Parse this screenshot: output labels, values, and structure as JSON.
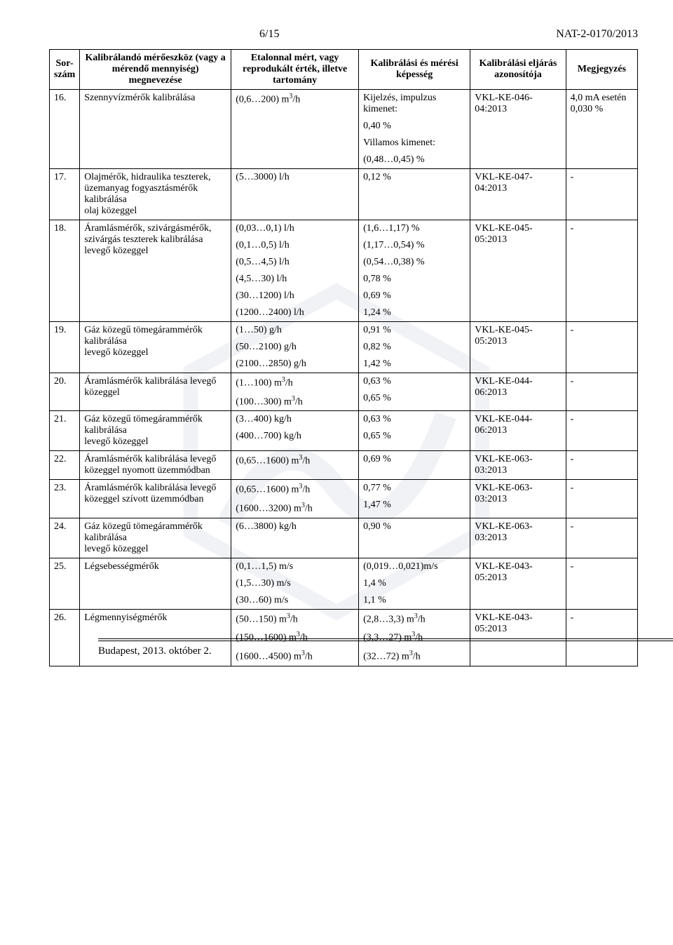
{
  "header": {
    "page_no": "6/15",
    "doc_id": "NAT-2-0170/2013"
  },
  "columns": {
    "sor": "Sor-\nszám",
    "megnevezes": "Kalibrálandó mérőeszköz (vagy a mérendő mennyiség) megnevezése",
    "etalon": "Etalonnal mért, vagy reprodukált érték, illetve tartomány",
    "kepesseg": "Kalibrálási és mérési képesség",
    "eljaras": "Kalibrálási eljárás azonosítója",
    "megjegyzes": "Megjegyzés"
  },
  "footer": "Budapest, 2013. október 2.",
  "rows": [
    {
      "n": "16.",
      "name": "Szennyvízmérők kalibrálása",
      "etalon": [
        "(0,6…200) m³/h"
      ],
      "kep": [
        "Kijelzés, impulzus kimenet:",
        "0,40 %",
        "Villamos kimenet:",
        "(0,48…0,45) %"
      ],
      "elj": "VKL-KE-046-04:2013",
      "mj": "4,0 mA esetén 0,030 %"
    },
    {
      "n": "17.",
      "name": "Olajmérők, hidraulika teszterek, üzemanyag fogyasztásmérők kalibrálása\nolaj közeggel",
      "etalon": [
        "(5…3000) l/h"
      ],
      "kep": [
        "0,12 %"
      ],
      "elj": "VKL-KE-047-04:2013",
      "mj": "-"
    },
    {
      "n": "18.",
      "name": "Áramlásmérők, szivárgásmérők, szivárgás teszterek kalibrálása levegő közeggel",
      "etalon": [
        "(0,03…0,1) l/h",
        "(0,1…0,5) l/h",
        "(0,5…4,5) l/h",
        "(4,5…30) l/h",
        "(30…1200) l/h",
        "(1200…2400) l/h"
      ],
      "kep": [
        "(1,6…1,17) %",
        "(1,17…0,54) %",
        "(0,54…0,38) %",
        "0,78 %",
        "0,69 %",
        "1,24 %"
      ],
      "elj": "VKL-KE-045-05:2013",
      "mj": "-"
    },
    {
      "n": "19.",
      "name": "Gáz közegű tömegárammérők kalibrálása\nlevegő közeggel",
      "etalon": [
        "(1…50) g/h",
        "(50…2100) g/h",
        "(2100…2850) g/h"
      ],
      "kep": [
        "0,91 %",
        "0,82 %",
        "1,42 %"
      ],
      "elj": "VKL-KE-045-05:2013",
      "mj": "-"
    },
    {
      "n": "20.",
      "name": "Áramlásmérők kalibrálása levegő közeggel",
      "etalon": [
        "(1…100) m³/h",
        "(100…300) m³/h"
      ],
      "kep": [
        "0,63 %",
        "0,65 %"
      ],
      "elj": "VKL-KE-044-06:2013",
      "mj": "-"
    },
    {
      "n": "21.",
      "name": "Gáz közegű tömegárammérők kalibrálása\nlevegő közeggel",
      "etalon": [
        "(3…400) kg/h",
        "(400…700) kg/h"
      ],
      "kep": [
        "0,63 %",
        "0,65 %"
      ],
      "elj": "VKL-KE-044-06:2013",
      "mj": "-"
    },
    {
      "n": "22.",
      "name": "Áramlásmérők kalibrálása levegő közeggel nyomott üzemmódban",
      "etalon": [
        "(0,65…1600) m³/h"
      ],
      "kep": [
        "0,69 %"
      ],
      "elj": "VKL-KE-063-03:2013",
      "mj": "-"
    },
    {
      "n": "23.",
      "name": "Áramlásmérők kalibrálása levegő közeggel szívott üzemmódban",
      "etalon": [
        "(0,65…1600) m³/h",
        "(1600…3200) m³/h"
      ],
      "kep": [
        "0,77 %",
        "1,47 %"
      ],
      "elj": "VKL-KE-063-03:2013",
      "mj": "-"
    },
    {
      "n": "24.",
      "name": "Gáz közegű tömegárammérők kalibrálása\nlevegő közeggel",
      "etalon": [
        "(6…3800) kg/h"
      ],
      "kep": [
        "0,90 %"
      ],
      "elj": "VKL-KE-063-03:2013",
      "mj": "-"
    },
    {
      "n": "25.",
      "name": "Légsebességmérők",
      "etalon": [
        "(0,1…1,5) m/s",
        "(1,5…30) m/s",
        "(30…60) m/s"
      ],
      "kep": [
        "(0,019…0,021)m/s",
        " 1,4 %",
        "1,1 %"
      ],
      "elj": "VKL-KE-043-05:2013",
      "mj": "-"
    },
    {
      "n": "26.",
      "name": "Légmennyiségmérők",
      "etalon": [
        "(50…150) m³/h",
        "(150…1600) m³/h",
        "(1600…4500) m³/h"
      ],
      "kep": [
        "(2,8…3,3) m³/h",
        "(3,3…27) m³/h",
        "(32…72) m³/h"
      ],
      "elj": "VKL-KE-043-05:2013",
      "mj": "-"
    }
  ]
}
